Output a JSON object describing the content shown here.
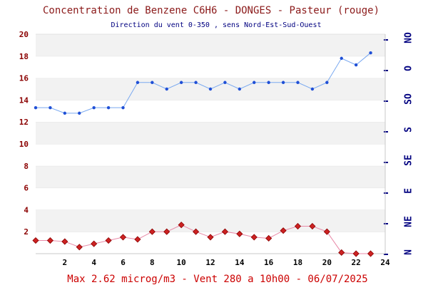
{
  "chart_data": {
    "type": "line",
    "title": "Concentration de Benzene C6H6  -   DONGES - Pasteur (rouge)",
    "subtitle": "Direction du vent 0-350 , sens Nord-Est-Sud-Ouest",
    "footer": "Max 2.62 microg/m3 - Vent 280  a 10h00 - 06/07/2025",
    "x": [
      0,
      1,
      2,
      3,
      4,
      5,
      6,
      7,
      8,
      9,
      10,
      11,
      12,
      13,
      14,
      15,
      16,
      17,
      18,
      19,
      20,
      21,
      22,
      23
    ],
    "x_ticks": [
      "2",
      "4",
      "6",
      "8",
      "10",
      "12",
      "14",
      "16",
      "18",
      "20",
      "22",
      "24"
    ],
    "xlim": [
      0,
      24
    ],
    "y_left_ticks": [
      "2",
      "4",
      "6",
      "8",
      "10",
      "12",
      "14",
      "16",
      "18",
      "20"
    ],
    "ylim": [
      0,
      20
    ],
    "y_right_ticks": [
      "N",
      "NE",
      "E",
      "SE",
      "S",
      "SO",
      "O",
      "NO"
    ],
    "grid": "horizontal alternating bands",
    "series": [
      {
        "axis": "right",
        "color": "#3b7bea",
        "marker": "dot",
        "values": [
          13.3,
          13.3,
          12.8,
          12.8,
          13.3,
          13.3,
          13.3,
          15.6,
          15.6,
          15.0,
          15.6,
          15.6,
          15.0,
          15.6,
          15.0,
          15.6,
          15.6,
          15.6,
          15.6,
          15.0,
          15.6,
          17.8,
          17.2,
          18.3
        ]
      },
      {
        "axis": "left",
        "color": "#cc2222",
        "marker": "diamond",
        "values": [
          1.2,
          1.2,
          1.1,
          0.6,
          0.9,
          1.2,
          1.5,
          1.3,
          2.0,
          2.0,
          2.62,
          2.0,
          1.5,
          2.0,
          1.8,
          1.5,
          1.4,
          2.1,
          2.5,
          2.5,
          2.0,
          0.1,
          0.0,
          0.0
        ]
      }
    ],
    "colors": {
      "title": "#8b1a1a",
      "subtitle": "#000080",
      "footer": "#cc0000",
      "left_axis": "#8b0000",
      "right_axis": "#000080",
      "x_axis": "#000000",
      "band": "#f2f2f2"
    }
  }
}
